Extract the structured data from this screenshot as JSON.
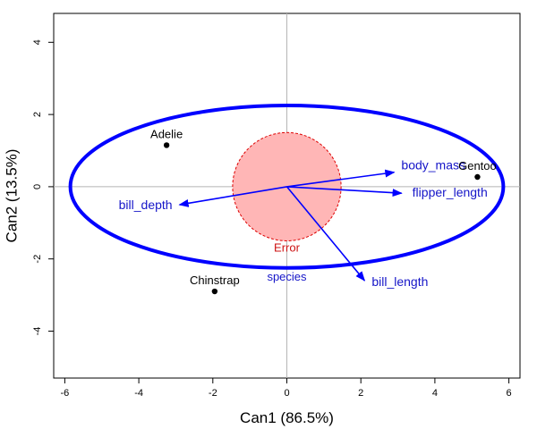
{
  "chart_data": {
    "type": "scatter",
    "xlabel": "Can1 (86.5%)",
    "ylabel": "Can2 (13.5%)",
    "xlim": [
      -6.3,
      6.3
    ],
    "ylim": [
      -5.3,
      4.8
    ],
    "x_ticks": [
      -6,
      -4,
      -2,
      0,
      2,
      4,
      6
    ],
    "y_ticks": [
      -4,
      -2,
      0,
      2,
      4
    ],
    "grid": false,
    "reference_lines": {
      "x": 0,
      "y": 0
    },
    "groups": [
      {
        "name": "Adelie",
        "x": -3.25,
        "y": 1.15
      },
      {
        "name": "Chinstrap",
        "x": -1.95,
        "y": -2.9
      },
      {
        "name": "Gentoo",
        "x": 5.15,
        "y": 0.27
      }
    ],
    "vectors": [
      {
        "name": "body_mass",
        "x": 2.9,
        "y": 0.4
      },
      {
        "name": "flipper_length",
        "x": 3.1,
        "y": -0.18
      },
      {
        "name": "bill_depth",
        "x": -2.9,
        "y": -0.5
      },
      {
        "name": "bill_length",
        "x": 2.1,
        "y": -2.6
      }
    ],
    "species_ellipse": {
      "label": "species",
      "center": [
        0,
        0
      ],
      "rx": 5.85,
      "ry": 2.25,
      "color": "#0000ff"
    },
    "error_circle": {
      "label": "Error",
      "center": [
        0,
        0
      ],
      "r": 1.5,
      "fill": "#ffb6b6",
      "stroke": "#dd0000"
    },
    "colors": {
      "vector": "#0000ff",
      "vector_label": "#1515c8",
      "error_label": "#cc1111",
      "point": "#000000"
    }
  }
}
